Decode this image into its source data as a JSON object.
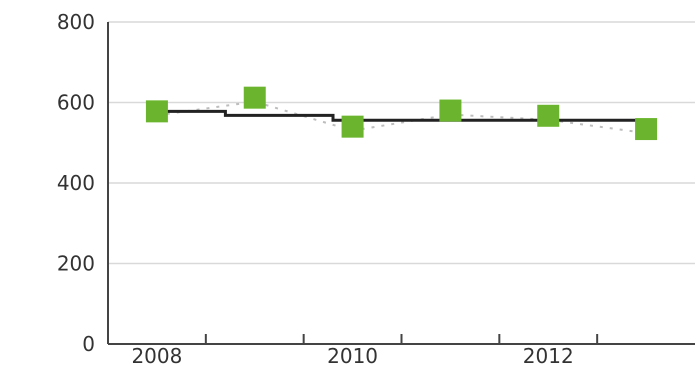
{
  "chart_data": {
    "type": "scatter",
    "title": "",
    "xlabel": "",
    "ylabel": "",
    "ylim": [
      0,
      800
    ],
    "y_ticks": [
      0,
      200,
      400,
      600,
      800
    ],
    "x_tick_labels": [
      "2008",
      "2010",
      "2012"
    ],
    "grid": true,
    "series": [
      {
        "marker": "square",
        "color": "#6bb52e",
        "points": [
          {
            "x": 2008,
            "y": 578
          },
          {
            "x": 2009,
            "y": 612
          },
          {
            "x": 2010,
            "y": 540
          },
          {
            "x": 2011,
            "y": 580
          },
          {
            "x": 2012,
            "y": 567
          },
          {
            "x": 2013,
            "y": 534
          }
        ]
      },
      {
        "type": "step-line",
        "color": "#222222",
        "segments": [
          {
            "x0": 2008,
            "x1": 2008.7,
            "y": 578
          },
          {
            "x0": 2008.7,
            "x1": 2009.8,
            "y": 568
          },
          {
            "x0": 2009.8,
            "x1": 2013,
            "y": 556
          }
        ]
      }
    ]
  }
}
